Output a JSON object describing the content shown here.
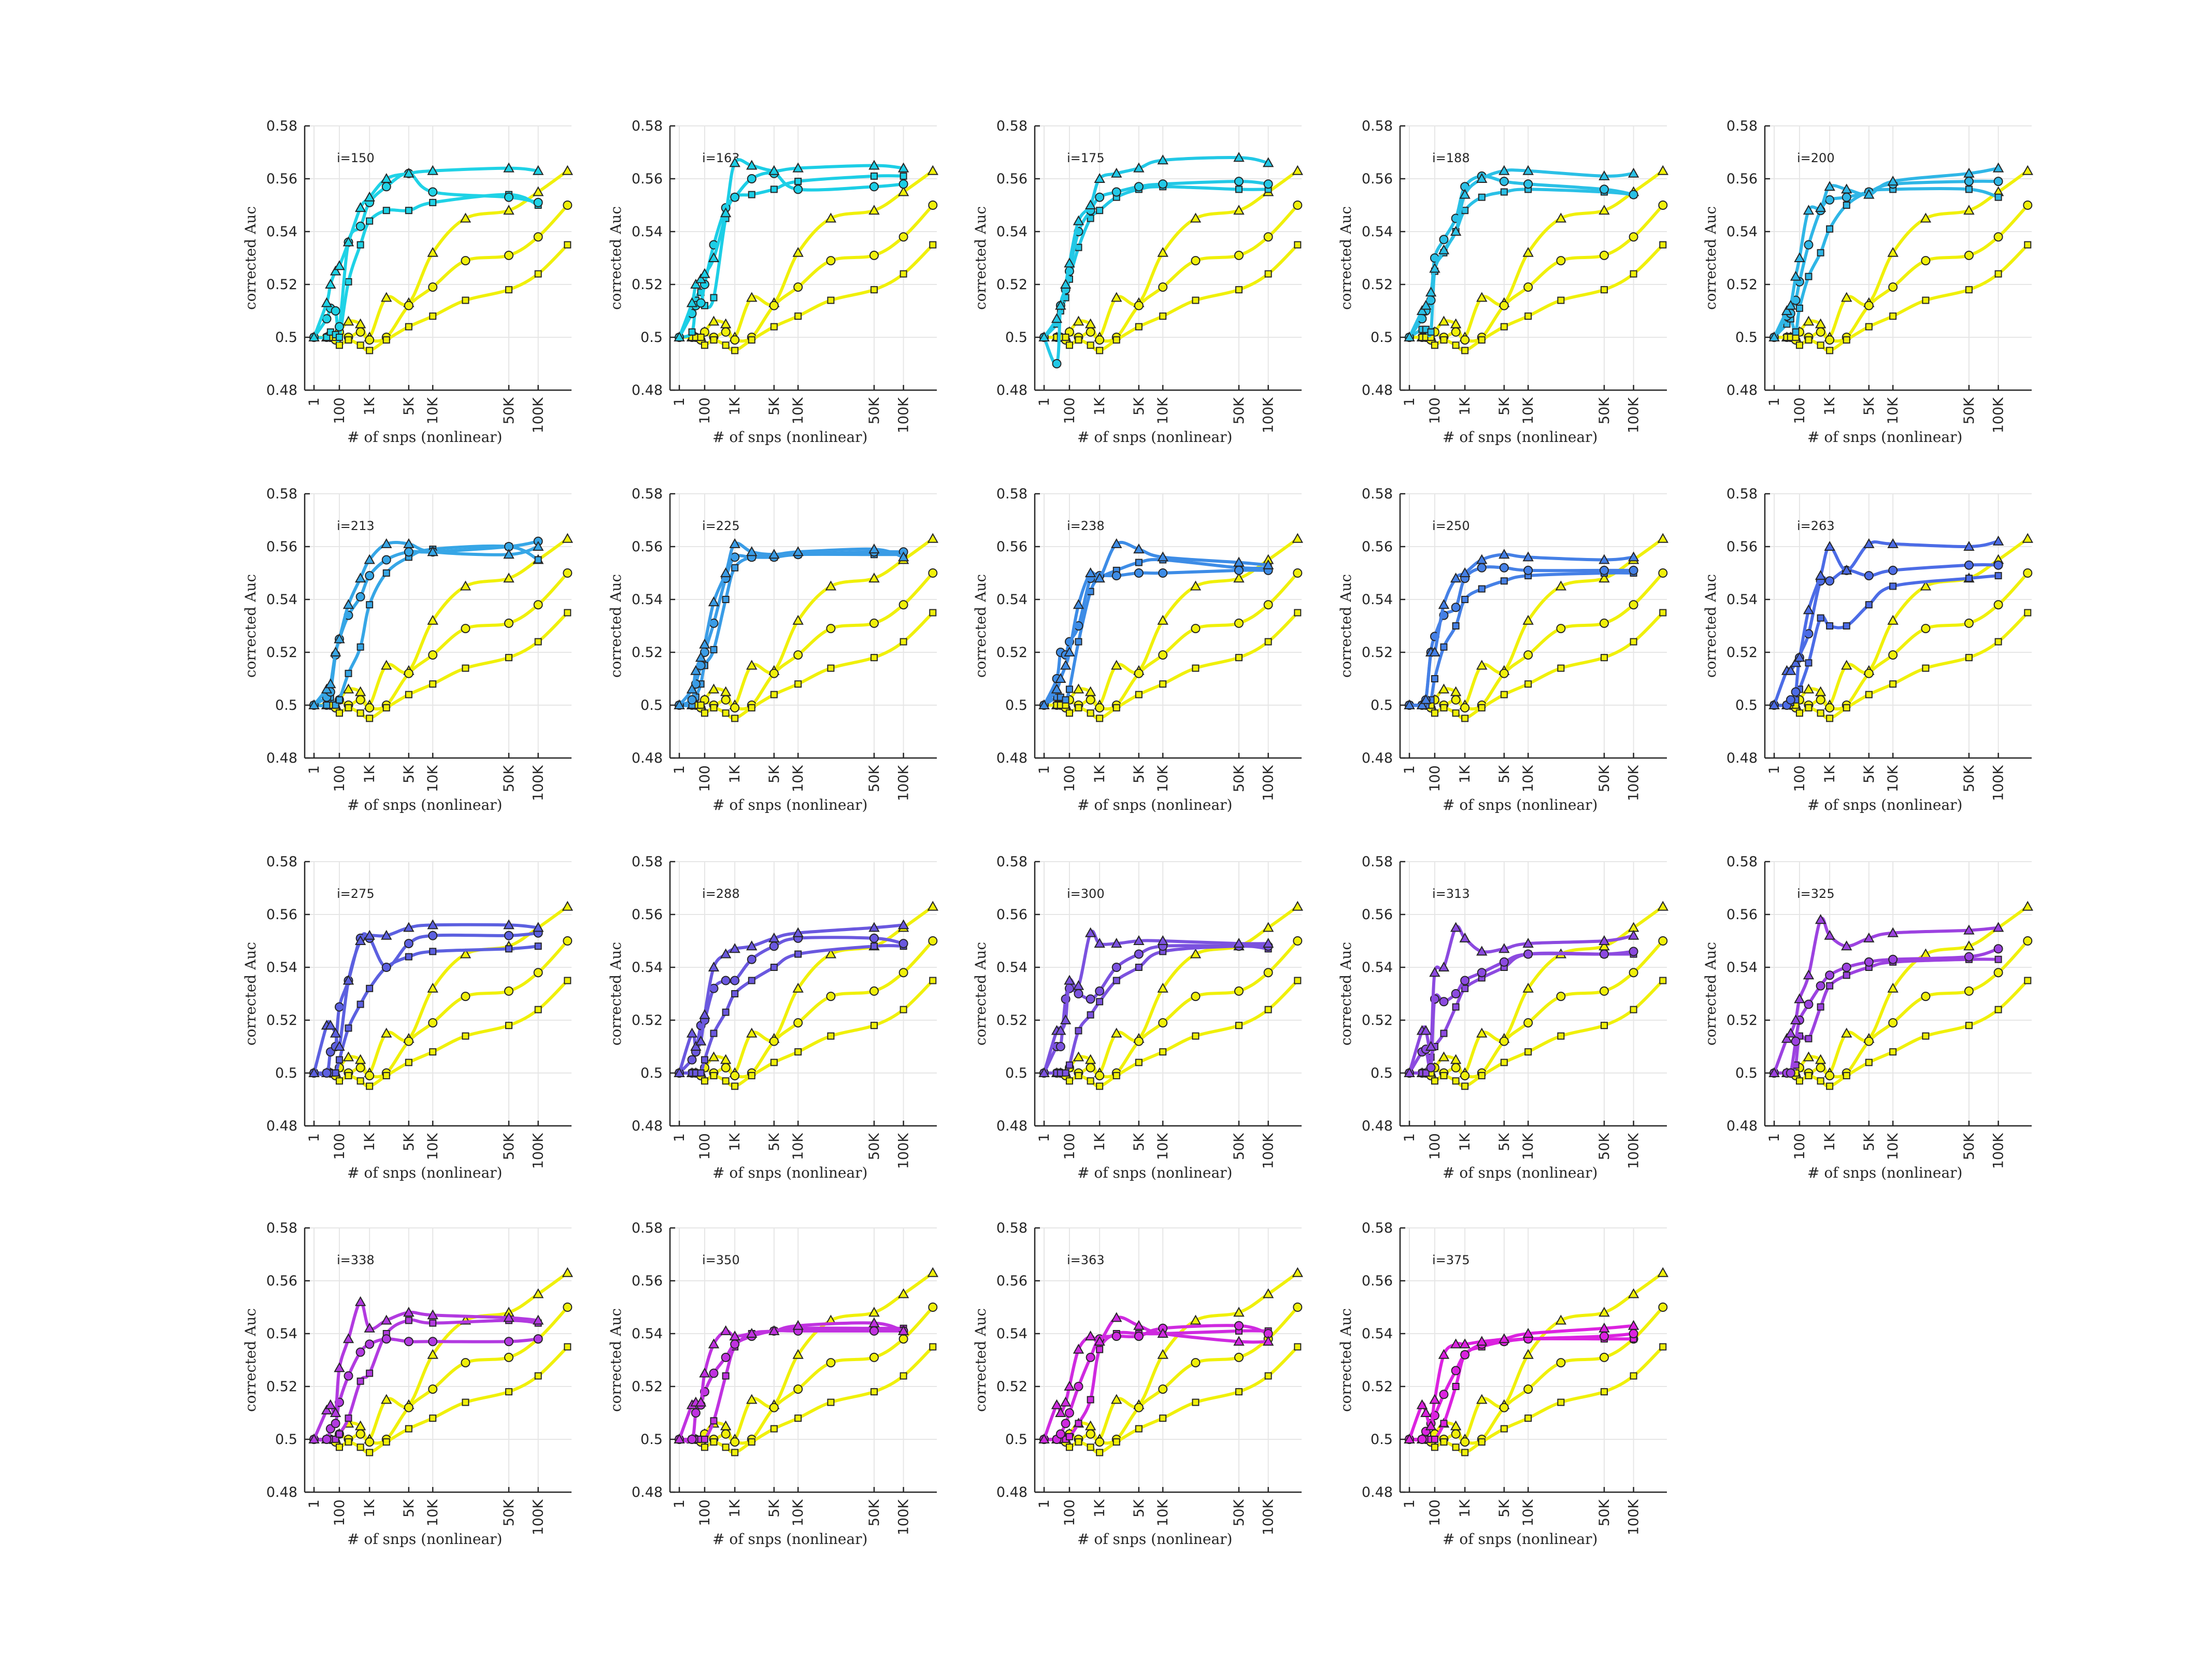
{
  "chart_data": {
    "type": "line",
    "layout": "small-multiples grid, 4 rows x 5 columns (19 panels)",
    "x_scale": "nonlinear",
    "x_ticks": [
      "1",
      "100",
      "1K",
      "5K",
      "10K",
      "50K",
      "100K"
    ],
    "xlabel": "# of snps (nonlinear)",
    "ylabel": "corrected Auc",
    "ylim": [
      0.48,
      0.58
    ],
    "y_ticks": [
      "0.48",
      "0.5",
      "0.52",
      "0.54",
      "0.56",
      "0.58"
    ],
    "grid": true,
    "marker_legend": {
      "triangle": "series A",
      "circle": "series B",
      "square": "series C"
    },
    "baseline_color": "#f0f00a",
    "baseline": {
      "x": [
        1,
        10,
        20,
        50,
        100,
        200,
        500,
        1000,
        2000,
        5000,
        10000,
        20000,
        50000,
        100000,
        200000
      ],
      "triangle": [
        0.5,
        0.5,
        0.5,
        0.5,
        0.502,
        0.506,
        0.505,
        0.5,
        0.515,
        0.513,
        0.532,
        0.545,
        0.548,
        0.555,
        0.563
      ],
      "circle": [
        0.5,
        0.5,
        0.5,
        0.499,
        0.502,
        0.5,
        0.502,
        0.499,
        0.5,
        0.512,
        0.519,
        0.529,
        0.531,
        0.538,
        0.55
      ],
      "square": [
        0.5,
        0.5,
        0.5,
        0.5,
        0.497,
        0.499,
        0.497,
        0.495,
        0.499,
        0.504,
        0.508,
        0.514,
        0.518,
        0.524,
        0.535
      ]
    },
    "panels": [
      {
        "label": "i=150",
        "color": "#1fd2e6",
        "triangle": [
          0.5,
          0.513,
          0.52,
          0.525,
          0.527,
          0.536,
          0.549,
          0.553,
          0.56,
          0.562,
          0.563,
          0.564,
          0.563
        ],
        "circle": [
          0.5,
          0.507,
          0.511,
          0.51,
          0.504,
          0.536,
          0.542,
          0.551,
          0.557,
          0.562,
          0.555,
          0.553,
          0.551
        ],
        "square": [
          0.5,
          0.5,
          0.502,
          0.501,
          0.5,
          0.521,
          0.535,
          0.544,
          0.548,
          0.548,
          0.551,
          0.554,
          0.55
        ]
      },
      {
        "label": "i=163",
        "color": "#1ccee6",
        "triangle": [
          0.5,
          0.513,
          0.52,
          0.522,
          0.524,
          0.53,
          0.547,
          0.566,
          0.565,
          0.563,
          0.564,
          0.565,
          0.564
        ],
        "circle": [
          0.5,
          0.509,
          0.512,
          0.513,
          0.52,
          0.535,
          0.549,
          0.553,
          0.56,
          0.562,
          0.556,
          0.557,
          0.558
        ],
        "square": [
          0.5,
          0.502,
          0.514,
          0.517,
          0.512,
          0.515,
          0.545,
          0.553,
          0.554,
          0.556,
          0.559,
          0.561,
          0.561
        ]
      },
      {
        "label": "i=175",
        "color": "#22c8e6",
        "triangle": [
          0.5,
          0.507,
          0.512,
          0.52,
          0.528,
          0.544,
          0.55,
          0.56,
          0.562,
          0.564,
          0.567,
          0.568,
          0.566
        ],
        "circle": [
          0.5,
          0.49,
          0.512,
          0.518,
          0.525,
          0.54,
          0.548,
          0.553,
          0.555,
          0.557,
          0.558,
          0.559,
          0.558
        ],
        "square": [
          0.5,
          0.505,
          0.51,
          0.515,
          0.522,
          0.534,
          0.545,
          0.548,
          0.553,
          0.556,
          0.557,
          0.556,
          0.556
        ]
      },
      {
        "label": "i=188",
        "color": "#2ac0e6",
        "triangle": [
          0.5,
          0.51,
          0.512,
          0.517,
          0.526,
          0.533,
          0.54,
          0.554,
          0.56,
          0.563,
          0.563,
          0.561,
          0.562
        ],
        "circle": [
          0.5,
          0.507,
          0.51,
          0.514,
          0.53,
          0.537,
          0.545,
          0.557,
          0.561,
          0.559,
          0.558,
          0.556,
          0.554
        ],
        "square": [
          0.5,
          0.503,
          0.503,
          0.502,
          0.525,
          0.532,
          0.54,
          0.548,
          0.553,
          0.555,
          0.556,
          0.555,
          0.554
        ]
      },
      {
        "label": "i=200",
        "color": "#2fb6e6",
        "triangle": [
          0.5,
          0.51,
          0.512,
          0.523,
          0.53,
          0.548,
          0.549,
          0.557,
          0.556,
          0.554,
          0.559,
          0.562,
          0.564
        ],
        "circle": [
          0.5,
          0.508,
          0.509,
          0.514,
          0.521,
          0.535,
          0.548,
          0.552,
          0.553,
          0.555,
          0.558,
          0.559,
          0.559
        ],
        "square": [
          0.5,
          0.505,
          0.507,
          0.502,
          0.511,
          0.523,
          0.532,
          0.541,
          0.55,
          0.555,
          0.556,
          0.556,
          0.553
        ]
      },
      {
        "label": "i=213",
        "color": "#36a6e6",
        "triangle": [
          0.5,
          0.506,
          0.508,
          0.52,
          0.525,
          0.538,
          0.548,
          0.555,
          0.561,
          0.561,
          0.558,
          0.557,
          0.56
        ],
        "circle": [
          0.5,
          0.503,
          0.505,
          0.519,
          0.525,
          0.534,
          0.541,
          0.549,
          0.555,
          0.558,
          0.558,
          0.56,
          0.562
        ],
        "square": [
          0.5,
          0.5,
          0.503,
          0.5,
          0.502,
          0.512,
          0.522,
          0.538,
          0.55,
          0.556,
          0.559,
          0.56,
          0.555
        ]
      },
      {
        "label": "i=225",
        "color": "#3a9ce6",
        "triangle": [
          0.5,
          0.506,
          0.513,
          0.518,
          0.523,
          0.539,
          0.55,
          0.561,
          0.558,
          0.557,
          0.558,
          0.559,
          0.556
        ],
        "circle": [
          0.5,
          0.502,
          0.508,
          0.515,
          0.52,
          0.531,
          0.548,
          0.556,
          0.556,
          0.556,
          0.557,
          0.558,
          0.558
        ],
        "square": [
          0.5,
          0.5,
          0.503,
          0.508,
          0.515,
          0.521,
          0.54,
          0.552,
          0.556,
          0.556,
          0.557,
          0.557,
          0.557
        ]
      },
      {
        "label": "i=238",
        "color": "#3d8ce6",
        "triangle": [
          0.5,
          0.506,
          0.51,
          0.515,
          0.52,
          0.538,
          0.55,
          0.548,
          0.561,
          0.559,
          0.556,
          0.554,
          0.553
        ],
        "circle": [
          0.5,
          0.51,
          0.52,
          0.519,
          0.524,
          0.53,
          0.548,
          0.549,
          0.549,
          0.55,
          0.55,
          0.551,
          0.551
        ],
        "square": [
          0.5,
          0.503,
          0.503,
          0.502,
          0.506,
          0.524,
          0.543,
          0.548,
          0.551,
          0.554,
          0.555,
          0.552,
          0.552
        ]
      },
      {
        "label": "i=250",
        "color": "#4580e6",
        "triangle": [
          0.5,
          0.5,
          0.502,
          0.52,
          0.52,
          0.538,
          0.548,
          0.55,
          0.555,
          0.557,
          0.556,
          0.555,
          0.556
        ],
        "circle": [
          0.5,
          0.5,
          0.502,
          0.52,
          0.526,
          0.534,
          0.537,
          0.548,
          0.552,
          0.552,
          0.551,
          0.551,
          0.551
        ],
        "square": [
          0.5,
          0.5,
          0.5,
          0.502,
          0.51,
          0.522,
          0.53,
          0.54,
          0.544,
          0.547,
          0.549,
          0.55,
          0.55
        ]
      },
      {
        "label": "i=263",
        "color": "#4c6ce6",
        "triangle": [
          0.5,
          0.513,
          0.513,
          0.516,
          0.518,
          0.536,
          0.549,
          0.56,
          0.551,
          0.561,
          0.561,
          0.56,
          0.562
        ],
        "circle": [
          0.5,
          0.5,
          0.502,
          0.505,
          0.518,
          0.527,
          0.547,
          0.547,
          0.551,
          0.549,
          0.551,
          0.553,
          0.553
        ],
        "square": [
          0.5,
          0.5,
          0.501,
          0.502,
          0.506,
          0.516,
          0.533,
          0.53,
          0.53,
          0.538,
          0.545,
          0.548,
          0.549
        ]
      },
      {
        "label": "i=275",
        "color": "#5c60e0",
        "triangle": [
          0.5,
          0.518,
          0.518,
          0.515,
          0.51,
          0.535,
          0.55,
          0.552,
          0.552,
          0.555,
          0.556,
          0.556,
          0.555
        ],
        "circle": [
          0.5,
          0.5,
          0.508,
          0.51,
          0.525,
          0.535,
          0.551,
          0.551,
          0.54,
          0.549,
          0.552,
          0.552,
          0.553
        ],
        "square": [
          0.5,
          0.5,
          0.5,
          0.5,
          0.505,
          0.517,
          0.526,
          0.532,
          0.54,
          0.544,
          0.546,
          0.547,
          0.548
        ]
      },
      {
        "label": "i=288",
        "color": "#6a58df",
        "triangle": [
          0.5,
          0.515,
          0.51,
          0.512,
          0.522,
          0.54,
          0.545,
          0.547,
          0.548,
          0.551,
          0.553,
          0.555,
          0.556
        ],
        "circle": [
          0.5,
          0.505,
          0.508,
          0.518,
          0.52,
          0.532,
          0.535,
          0.535,
          0.543,
          0.548,
          0.551,
          0.551,
          0.549
        ],
        "square": [
          0.5,
          0.5,
          0.5,
          0.5,
          0.505,
          0.515,
          0.523,
          0.53,
          0.535,
          0.54,
          0.545,
          0.548,
          0.548
        ]
      },
      {
        "label": "i=300",
        "color": "#7b52df",
        "triangle": [
          0.5,
          0.516,
          0.516,
          0.52,
          0.535,
          0.533,
          0.553,
          0.549,
          0.549,
          0.55,
          0.55,
          0.549,
          0.549
        ],
        "circle": [
          0.5,
          0.51,
          0.51,
          0.528,
          0.532,
          0.53,
          0.528,
          0.531,
          0.54,
          0.545,
          0.548,
          0.548,
          0.548
        ],
        "square": [
          0.5,
          0.5,
          0.5,
          0.5,
          0.503,
          0.516,
          0.522,
          0.527,
          0.535,
          0.54,
          0.546,
          0.548,
          0.547
        ]
      },
      {
        "label": "i=313",
        "color": "#8c4ae0",
        "triangle": [
          0.5,
          0.516,
          0.516,
          0.51,
          0.538,
          0.54,
          0.555,
          0.551,
          0.546,
          0.547,
          0.549,
          0.55,
          0.552
        ],
        "circle": [
          0.5,
          0.508,
          0.509,
          0.502,
          0.528,
          0.527,
          0.53,
          0.535,
          0.538,
          0.542,
          0.545,
          0.545,
          0.546
        ],
        "square": [
          0.5,
          0.5,
          0.5,
          0.506,
          0.51,
          0.515,
          0.525,
          0.532,
          0.536,
          0.54,
          0.545,
          0.545,
          0.545
        ]
      },
      {
        "label": "i=325",
        "color": "#9c42e0",
        "triangle": [
          0.5,
          0.513,
          0.515,
          0.52,
          0.528,
          0.537,
          0.558,
          0.552,
          0.548,
          0.551,
          0.553,
          0.554,
          0.555
        ],
        "circle": [
          0.5,
          0.5,
          0.5,
          0.512,
          0.52,
          0.526,
          0.533,
          0.537,
          0.54,
          0.542,
          0.543,
          0.544,
          0.547
        ],
        "square": [
          0.5,
          0.5,
          0.5,
          0.503,
          0.514,
          0.513,
          0.525,
          0.533,
          0.537,
          0.54,
          0.542,
          0.543,
          0.543
        ]
      },
      {
        "label": "i=338",
        "color": "#b23ae0",
        "triangle": [
          0.5,
          0.511,
          0.513,
          0.51,
          0.527,
          0.538,
          0.552,
          0.542,
          0.545,
          0.548,
          0.547,
          0.546,
          0.545
        ],
        "circle": [
          0.5,
          0.5,
          0.504,
          0.506,
          0.514,
          0.524,
          0.533,
          0.536,
          0.538,
          0.537,
          0.537,
          0.537,
          0.538
        ],
        "square": [
          0.5,
          0.5,
          0.5,
          0.5,
          0.502,
          0.508,
          0.522,
          0.525,
          0.54,
          0.545,
          0.544,
          0.545,
          0.544
        ]
      },
      {
        "label": "i=350",
        "color": "#c032e0",
        "triangle": [
          0.5,
          0.513,
          0.514,
          0.514,
          0.525,
          0.536,
          0.541,
          0.539,
          0.54,
          0.541,
          0.543,
          0.544,
          0.541
        ],
        "circle": [
          0.5,
          0.5,
          0.51,
          0.513,
          0.518,
          0.525,
          0.531,
          0.536,
          0.539,
          0.541,
          0.541,
          0.541,
          0.541
        ],
        "square": [
          0.5,
          0.5,
          0.5,
          0.5,
          0.5,
          0.507,
          0.524,
          0.535,
          0.54,
          0.541,
          0.542,
          0.542,
          0.542
        ]
      },
      {
        "label": "i=363",
        "color": "#cf2ae0",
        "triangle": [
          0.5,
          0.513,
          0.51,
          0.514,
          0.52,
          0.534,
          0.539,
          0.537,
          0.546,
          0.543,
          0.54,
          0.537,
          0.537
        ],
        "circle": [
          0.5,
          0.5,
          0.502,
          0.506,
          0.51,
          0.52,
          0.531,
          0.538,
          0.539,
          0.539,
          0.542,
          0.543,
          0.54
        ],
        "square": [
          0.5,
          0.5,
          0.5,
          0.5,
          0.501,
          0.506,
          0.515,
          0.534,
          0.54,
          0.54,
          0.54,
          0.541,
          0.541
        ]
      },
      {
        "label": "i=375",
        "color": "#dc22e0",
        "triangle": [
          0.5,
          0.513,
          0.51,
          0.505,
          0.515,
          0.532,
          0.536,
          0.536,
          0.537,
          0.538,
          0.54,
          0.542,
          0.543
        ],
        "circle": [
          0.5,
          0.5,
          0.503,
          0.506,
          0.509,
          0.517,
          0.526,
          0.532,
          0.536,
          0.537,
          0.538,
          0.539,
          0.54
        ],
        "square": [
          0.5,
          0.5,
          0.5,
          0.5,
          0.5,
          0.506,
          0.52,
          0.532,
          0.535,
          0.537,
          0.538,
          0.538,
          0.538
        ]
      }
    ],
    "panel_x": [
      1,
      10,
      20,
      50,
      100,
      200,
      500,
      1000,
      2000,
      5000,
      10000,
      50000,
      100000
    ]
  }
}
